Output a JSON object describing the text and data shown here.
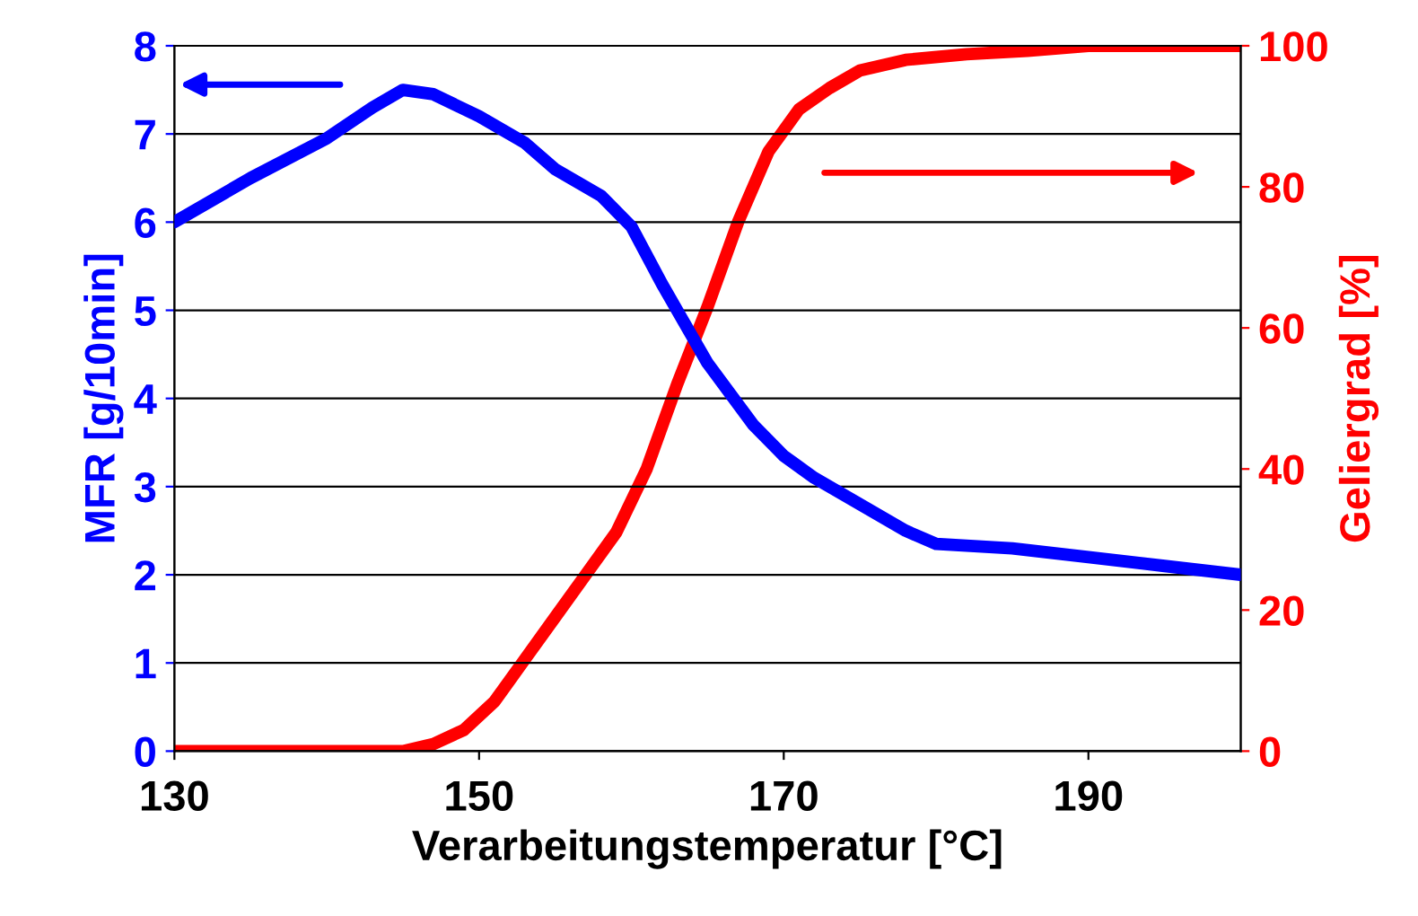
{
  "chart_data": {
    "type": "line",
    "xlabel": "Verarbeitungstemperatur [°C]",
    "ylabel": "MFR [g/10min]",
    "y2label": "Geliergrad [%]",
    "xlim": [
      130,
      200
    ],
    "xticks": [
      130,
      150,
      170,
      190
    ],
    "ylim": [
      0,
      8
    ],
    "yticks": [
      0,
      1,
      2,
      3,
      4,
      5,
      6,
      7,
      8
    ],
    "y2lim": [
      0,
      100
    ],
    "y2ticks": [
      0,
      20,
      40,
      60,
      80,
      100
    ],
    "grid": "y",
    "marker": "none",
    "line_style": "solid",
    "series": [
      {
        "color": "#0000ff",
        "x": [
          130,
          135,
          140,
          143,
          145,
          147,
          150,
          153,
          155,
          158,
          160,
          162,
          165,
          168,
          170,
          172,
          175,
          178,
          180,
          185,
          190,
          195,
          200
        ],
        "values": [
          6.0,
          6.5,
          6.95,
          7.3,
          7.5,
          7.45,
          7.2,
          6.9,
          6.6,
          6.3,
          5.95,
          5.3,
          4.4,
          3.7,
          3.35,
          3.1,
          2.8,
          2.5,
          2.35,
          2.3,
          2.2,
          2.1,
          2.0
        ]
      },
      {
        "color": "#ff0000",
        "axis": "y2",
        "x": [
          130,
          140,
          143,
          145,
          147,
          149,
          151,
          153,
          155,
          157,
          159,
          161,
          163,
          165,
          167,
          169,
          171,
          173,
          175,
          178,
          182,
          186,
          190,
          200
        ],
        "values": [
          0,
          0,
          0,
          0,
          1,
          3,
          7,
          13,
          19,
          25,
          31,
          40,
          52,
          63,
          75,
          85,
          91,
          94,
          96.5,
          98,
          98.8,
          99.3,
          100,
          100
        ]
      }
    ]
  }
}
